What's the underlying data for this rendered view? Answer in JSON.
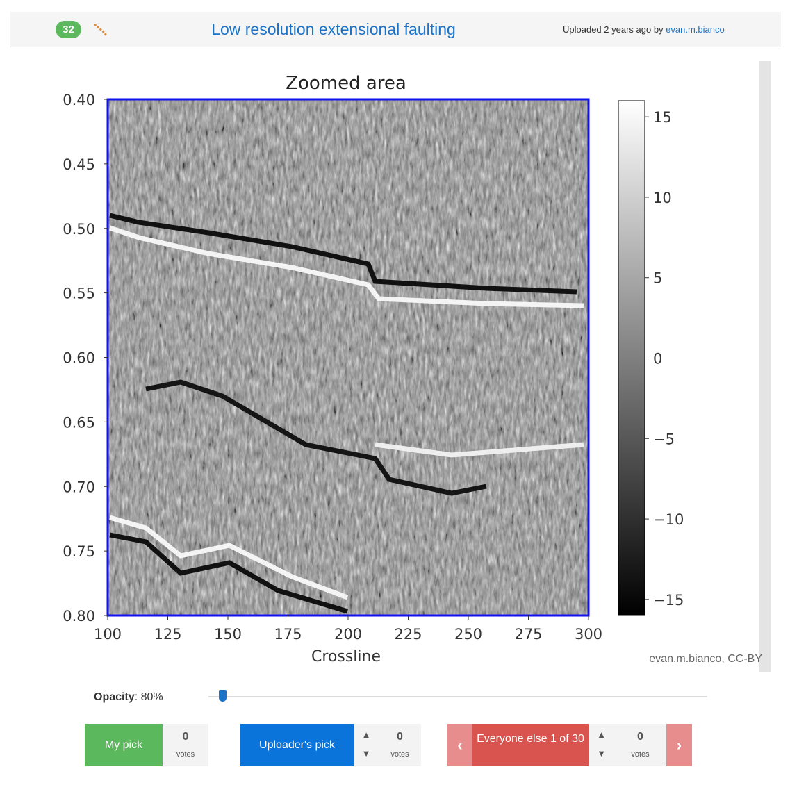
{
  "header": {
    "score": "32",
    "title": "Low resolution extensional faulting",
    "uploaded": "Uploaded 2 years ago by",
    "author": "evan.m.bianco"
  },
  "plot": {
    "title": "Zoomed area",
    "x_label": "Crossline",
    "xlim": [
      100,
      300
    ],
    "xticks": [
      100,
      125,
      150,
      175,
      200,
      225,
      250,
      275,
      300
    ],
    "ylim": [
      0.4,
      0.8
    ],
    "y_inverted": true,
    "yticks": [
      {
        "value": 0.4,
        "label": "0.40"
      },
      {
        "value": 0.45,
        "label": "0.45"
      },
      {
        "value": 0.5,
        "label": "0.50"
      },
      {
        "value": 0.55,
        "label": "0.55"
      },
      {
        "value": 0.6,
        "label": "0.60"
      },
      {
        "value": 0.65,
        "label": "0.65"
      },
      {
        "value": 0.7,
        "label": "0.70"
      },
      {
        "value": 0.75,
        "label": "0.75"
      },
      {
        "value": 0.8,
        "label": "0.80"
      }
    ],
    "colorbar": {
      "lim": [
        -16,
        16
      ],
      "ticks": [
        15,
        10,
        5,
        0,
        {
          "value": -5,
          "label": "−5"
        },
        {
          "value": -10,
          "label": "−10"
        },
        {
          "value": -15,
          "label": "−15"
        }
      ]
    }
  },
  "credit": "evan.m.bianco, CC-BY",
  "opacity": {
    "label": "Opacity",
    "value": ": 80%"
  },
  "buttons": [
    {
      "label": "My pick",
      "votes": "0",
      "votes_label": "votes"
    },
    {
      "label": "Uploader's pick",
      "votes": "0",
      "votes_label": "votes"
    },
    {
      "label": "Everyone else 1 of 30",
      "votes": "0",
      "votes_label": "votes"
    }
  ]
}
